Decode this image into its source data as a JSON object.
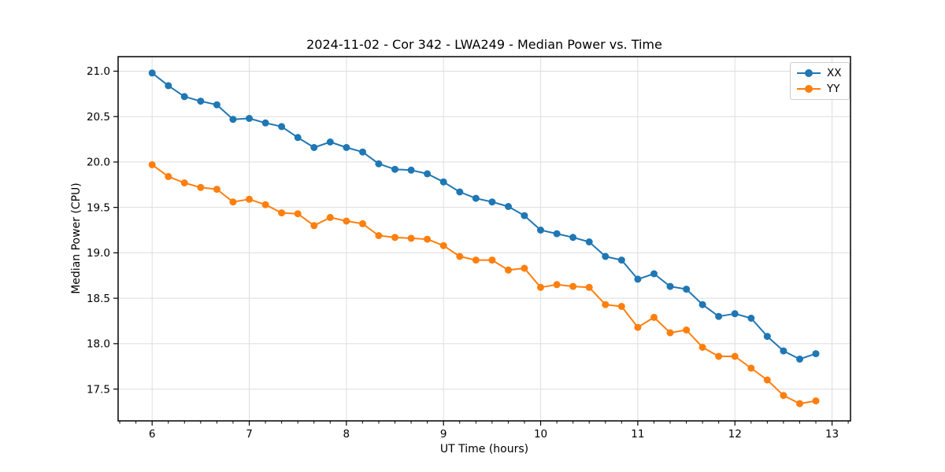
{
  "chart_data": {
    "type": "line",
    "title": "2024-11-02 - Cor 342 - LWA249 - Median Power vs. Time",
    "xlabel": "UT Time (hours)",
    "ylabel": "Median Power (CPU)",
    "xlim": [
      5.65,
      13.19
    ],
    "ylim": [
      17.15,
      21.16
    ],
    "x_ticks": [
      6,
      7,
      8,
      9,
      10,
      11,
      12,
      13
    ],
    "y_ticks": [
      17.5,
      18.0,
      18.5,
      19.0,
      19.5,
      20.0,
      20.5,
      21.0
    ],
    "x_minor_tick_step": 0.1667,
    "grid": true,
    "grid_color": "#dedede",
    "legend_position": "upper right",
    "x": [
      6,
      6.167,
      6.333,
      6.5,
      6.667,
      6.833,
      7,
      7.167,
      7.333,
      7.5,
      7.667,
      7.833,
      8,
      8.167,
      8.333,
      8.5,
      8.667,
      8.833,
      9,
      9.167,
      9.333,
      9.5,
      9.667,
      9.833,
      10,
      10.167,
      10.333,
      10.5,
      10.667,
      10.833,
      11,
      11.167,
      11.333,
      11.5,
      11.667,
      11.833,
      12,
      12.167,
      12.333,
      12.5,
      12.667,
      12.833
    ],
    "series": [
      {
        "name": "XX",
        "color": "#1f77b4",
        "values": [
          20.98,
          20.84,
          20.72,
          20.67,
          20.63,
          20.47,
          20.48,
          20.43,
          20.39,
          20.27,
          20.16,
          20.22,
          20.16,
          20.11,
          19.98,
          19.92,
          19.91,
          19.87,
          19.78,
          19.67,
          19.6,
          19.56,
          19.51,
          19.41,
          19.25,
          19.21,
          19.17,
          19.12,
          18.96,
          18.92,
          18.71,
          18.77,
          18.63,
          18.6,
          18.43,
          18.3,
          18.33,
          18.28,
          18.08,
          17.92,
          17.83,
          17.89
        ]
      },
      {
        "name": "YY",
        "color": "#ff7f0e",
        "values": [
          19.97,
          19.84,
          19.77,
          19.72,
          19.7,
          19.56,
          19.59,
          19.53,
          19.44,
          19.43,
          19.3,
          19.39,
          19.35,
          19.32,
          19.19,
          19.17,
          19.16,
          19.15,
          19.08,
          18.96,
          18.92,
          18.92,
          18.81,
          18.83,
          18.62,
          18.65,
          18.63,
          18.62,
          18.43,
          18.41,
          18.18,
          18.29,
          18.12,
          18.15,
          17.96,
          17.86,
          17.86,
          17.73,
          17.6,
          17.43,
          17.34,
          17.37
        ]
      }
    ]
  }
}
